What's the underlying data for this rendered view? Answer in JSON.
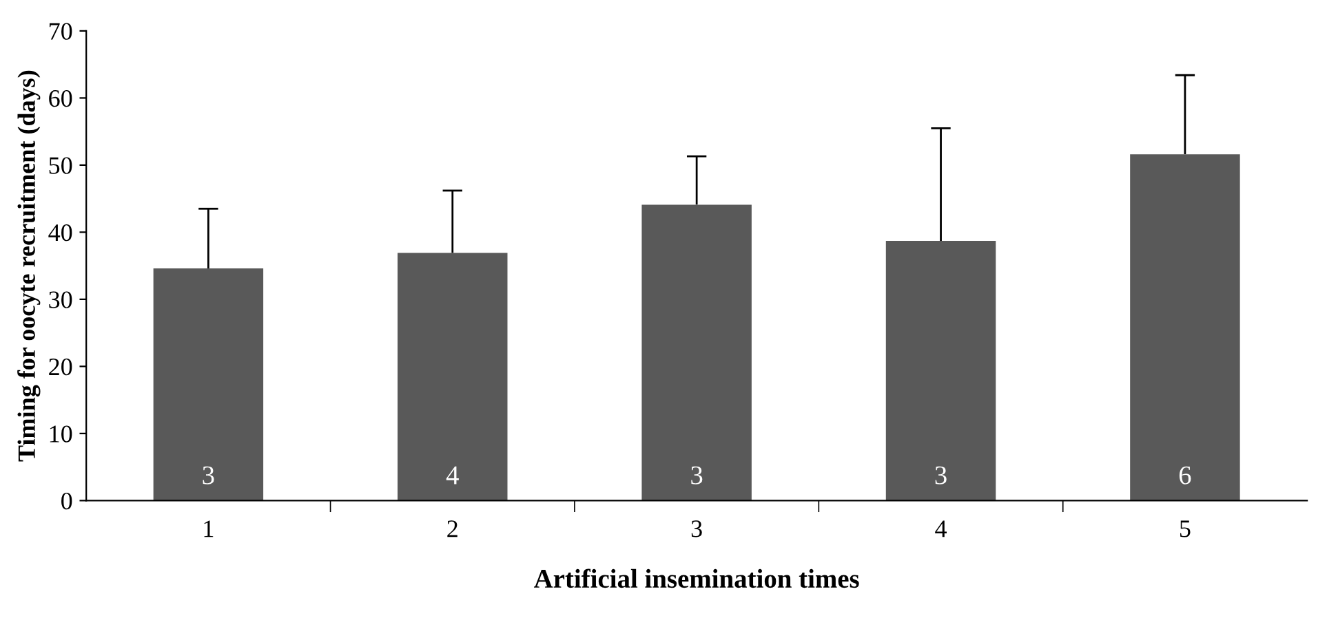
{
  "chart_data": {
    "type": "bar",
    "xlabel": "Artificial insemination times",
    "ylabel": "Timing for oocyte recruitment (days)",
    "categories": [
      "1",
      "2",
      "3",
      "4",
      "5"
    ],
    "values": [
      34.6,
      36.9,
      44.1,
      38.7,
      51.6
    ],
    "errors": [
      [
        34.6,
        43.5
      ],
      [
        36.9,
        46.2
      ],
      [
        44.1,
        51.3
      ],
      [
        38.7,
        55.5
      ],
      [
        51.6,
        63.4
      ]
    ],
    "color": "#595959",
    "ylim": [
      0,
      70
    ],
    "yticks": [
      0,
      10,
      20,
      30,
      40,
      50,
      60,
      70
    ],
    "grid": false,
    "annotations": [
      "3",
      "4",
      "3",
      "3",
      "6"
    ]
  }
}
